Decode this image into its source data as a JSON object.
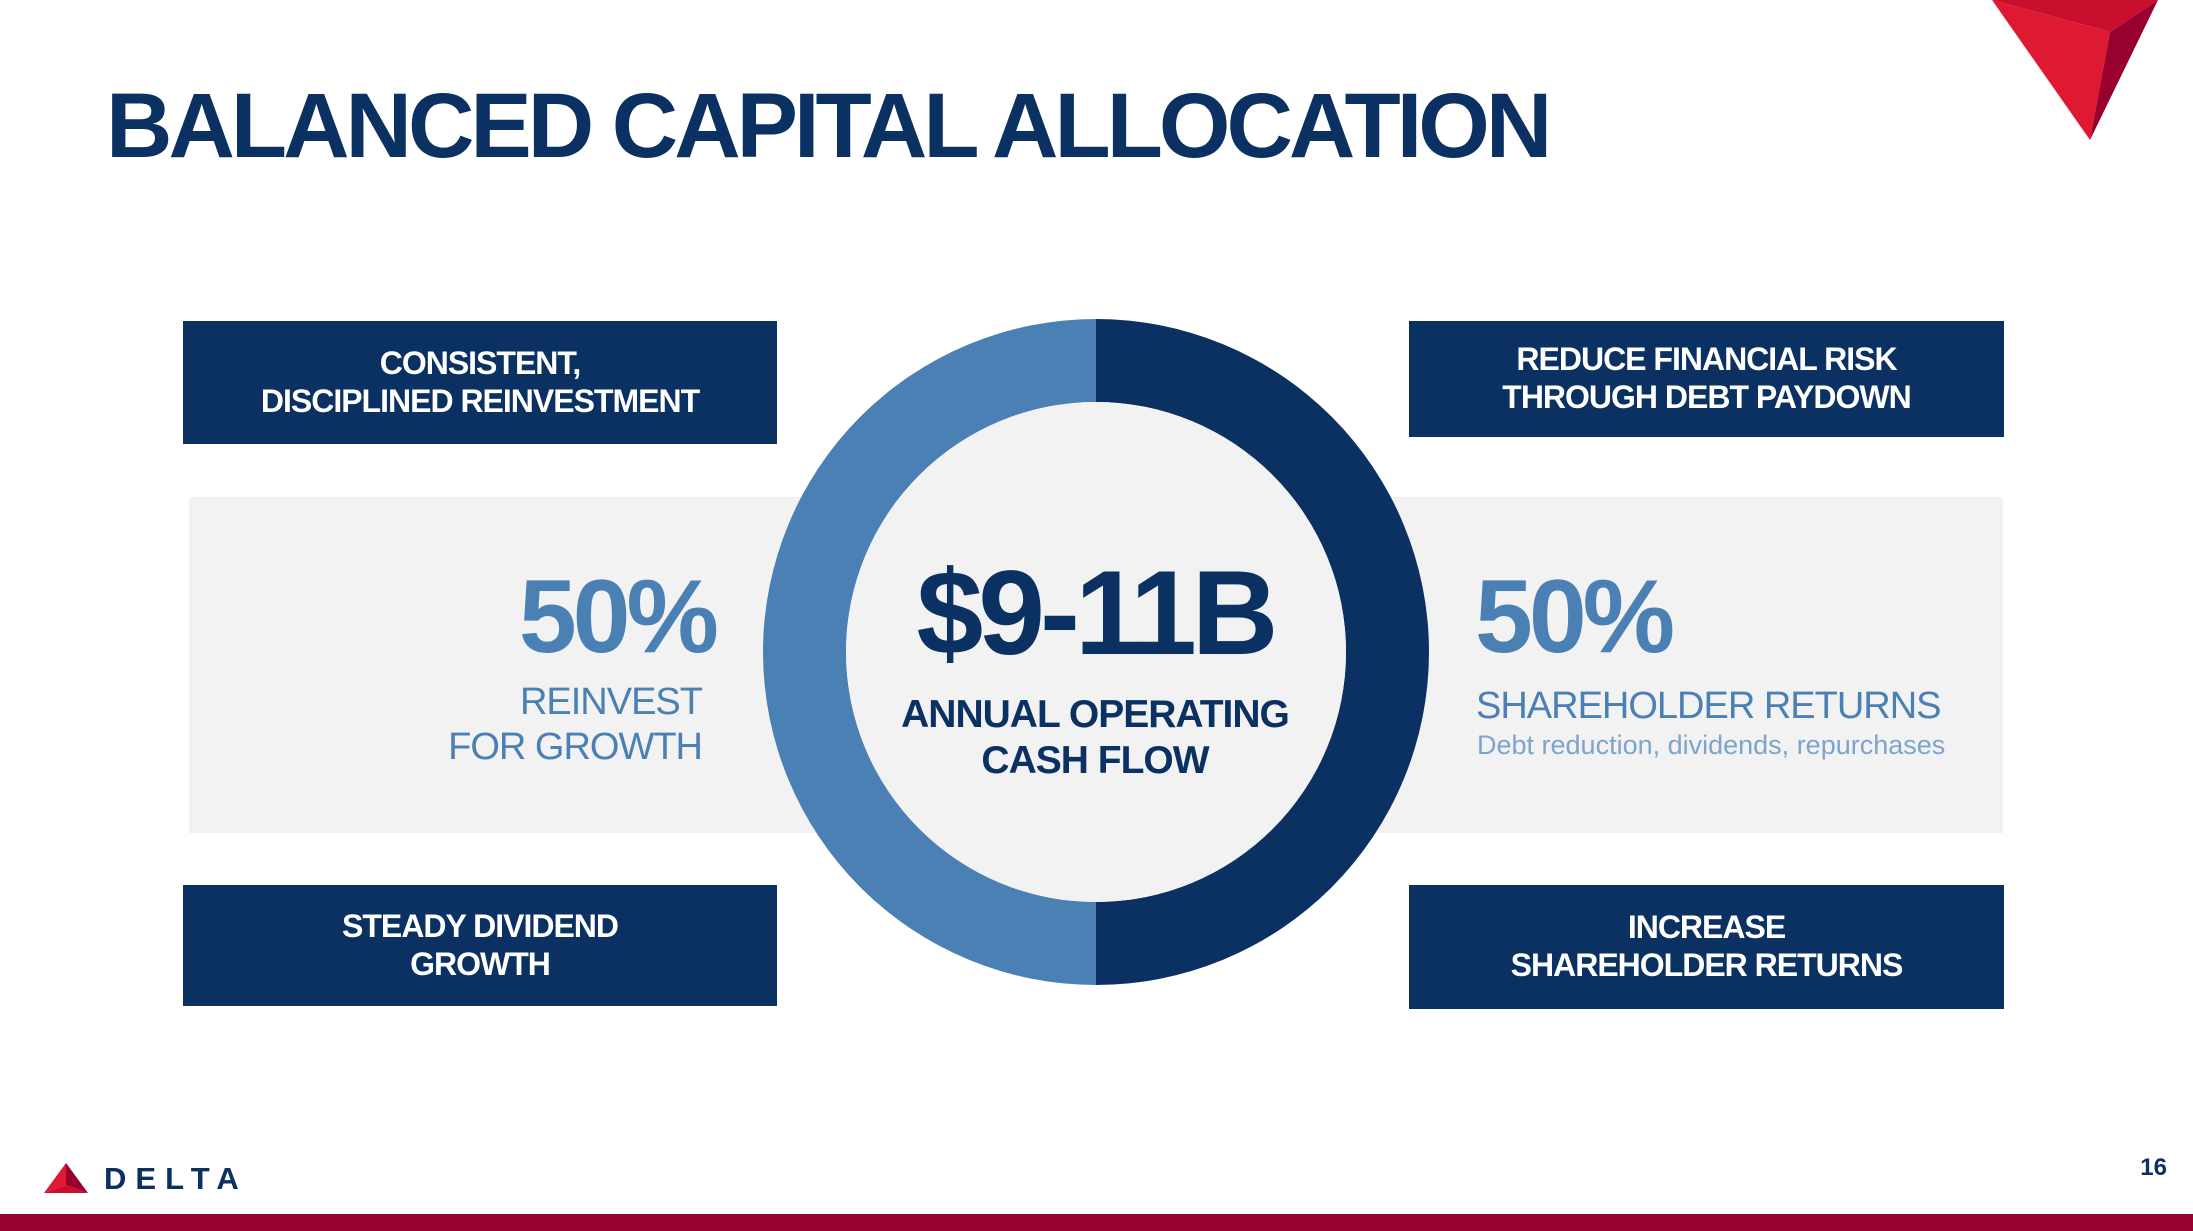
{
  "title": "BALANCED CAPITAL ALLOCATION",
  "colors": {
    "navy": "#0a3161",
    "light_blue": "#4a80b4",
    "band_gray": "#f2f2f2",
    "brand_red": "#98002e"
  },
  "boxes": {
    "top_left": "CONSISTENT,\nDISCIPLINED REINVESTMENT",
    "top_right": "REDUCE FINANCIAL RISK\nTHROUGH DEBT PAYDOWN",
    "bottom_left": "STEADY DIVIDEND\nGROWTH",
    "bottom_right": "INCREASE\nSHAREHOLDER RETURNS"
  },
  "left": {
    "percent": "50%",
    "label": "REINVEST\nFOR GROWTH"
  },
  "right": {
    "percent": "50%",
    "label": "SHAREHOLDER RETURNS",
    "sublabel": "Debt reduction, dividends, repurchases"
  },
  "center": {
    "amount": "$9-11B",
    "label": "ANNUAL OPERATING\nCASH FLOW"
  },
  "chart_data": {
    "type": "pie",
    "style": "donut",
    "categories": [
      "REINVEST FOR GROWTH",
      "SHAREHOLDER RETURNS"
    ],
    "values": [
      50,
      50
    ],
    "colors": [
      "#4a80b4",
      "#0a3161"
    ]
  },
  "logo": {
    "brand": "DELTA",
    "icon": "delta-widget-icon"
  },
  "page_number": "16"
}
